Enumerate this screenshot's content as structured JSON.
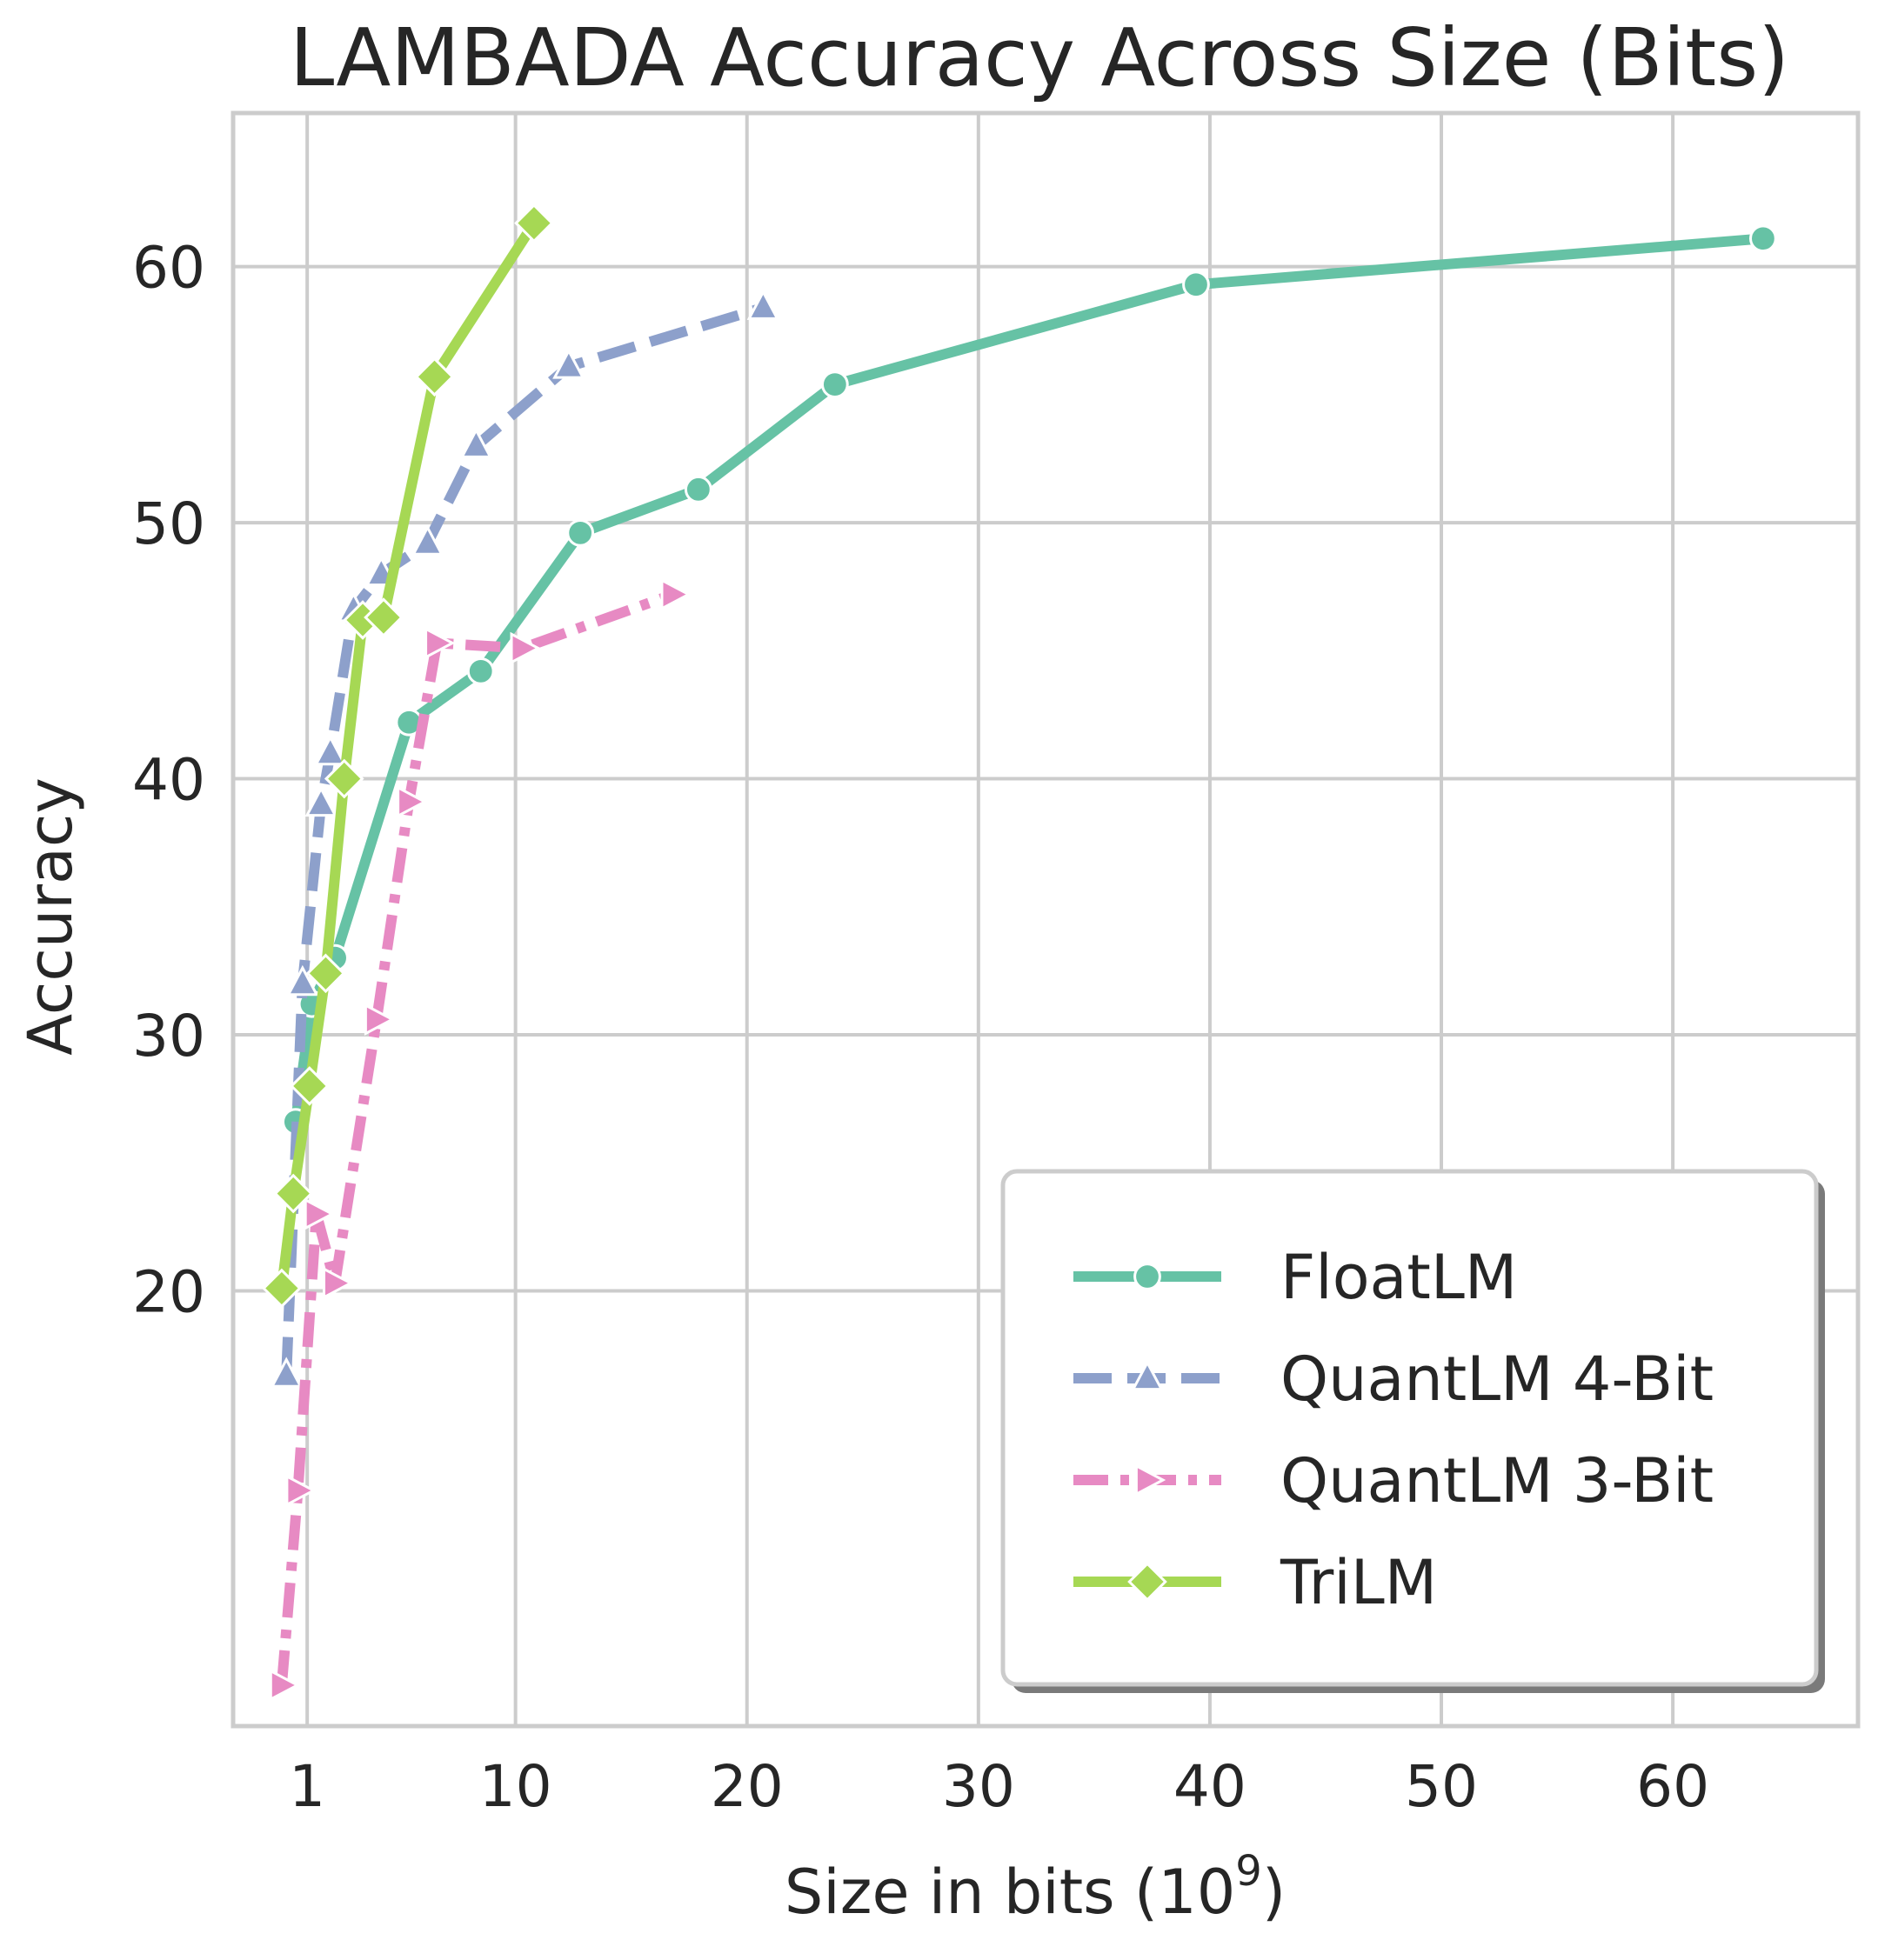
{
  "chart_data": {
    "type": "line",
    "title": "LAMBADA Accuracy Across Size (Bits)",
    "xlabel": "Size in bits (",
    "xlabel_base": "10",
    "xlabel_exp": "9",
    "xlabel_close": ")",
    "ylabel": "Accuracy",
    "xlim": [
      -2.2,
      68
    ],
    "ylim": [
      3,
      66
    ],
    "xticks": [
      1,
      10,
      20,
      30,
      40,
      50,
      60
    ],
    "yticks": [
      20,
      30,
      40,
      50,
      60
    ],
    "grid": true,
    "legend_position": "lower-right",
    "series": [
      {
        "name": "FloatLM",
        "color": "#66c2a5",
        "marker": "circle",
        "dash": "solid",
        "x": [
          0.5,
          1.2,
          2.2,
          5.4,
          8.5,
          12.8,
          17.9,
          23.8,
          39.4,
          63.9
        ],
        "y": [
          26.6,
          31.2,
          33.0,
          42.2,
          44.2,
          49.6,
          51.3,
          55.4,
          59.3,
          61.1
        ]
      },
      {
        "name": "QuantLM 4-Bit",
        "color": "#8da0cb",
        "marker": "triangle-up",
        "dash": "dashed",
        "x": [
          0.1,
          0.8,
          1.6,
          2.0,
          3.0,
          4.2,
          6.2,
          8.3,
          12.3,
          20.7
        ],
        "y": [
          16.7,
          32.0,
          39.0,
          41.0,
          46.6,
          48.0,
          49.2,
          53.0,
          56.1,
          58.4
        ]
      },
      {
        "name": "QuantLM 3-Bit",
        "color": "#e78ac3",
        "marker": "triangle-right",
        "dash": "dashdot",
        "x": [
          -0.1,
          0.6,
          1.4,
          2.2,
          4.0,
          5.4,
          6.6,
          10.3,
          16.8
        ],
        "y": [
          4.6,
          12.2,
          23.0,
          20.3,
          30.6,
          39.1,
          45.3,
          45.1,
          47.2
        ]
      },
      {
        "name": "TriLM",
        "color": "#a6d854",
        "marker": "diamond",
        "dash": "solid",
        "x": [
          -0.1,
          0.4,
          1.1,
          1.8,
          2.6,
          3.4,
          4.3,
          6.5,
          10.8
        ],
        "y": [
          20.1,
          23.8,
          28.0,
          32.4,
          40.0,
          46.2,
          46.3,
          55.7,
          61.7
        ]
      }
    ]
  }
}
